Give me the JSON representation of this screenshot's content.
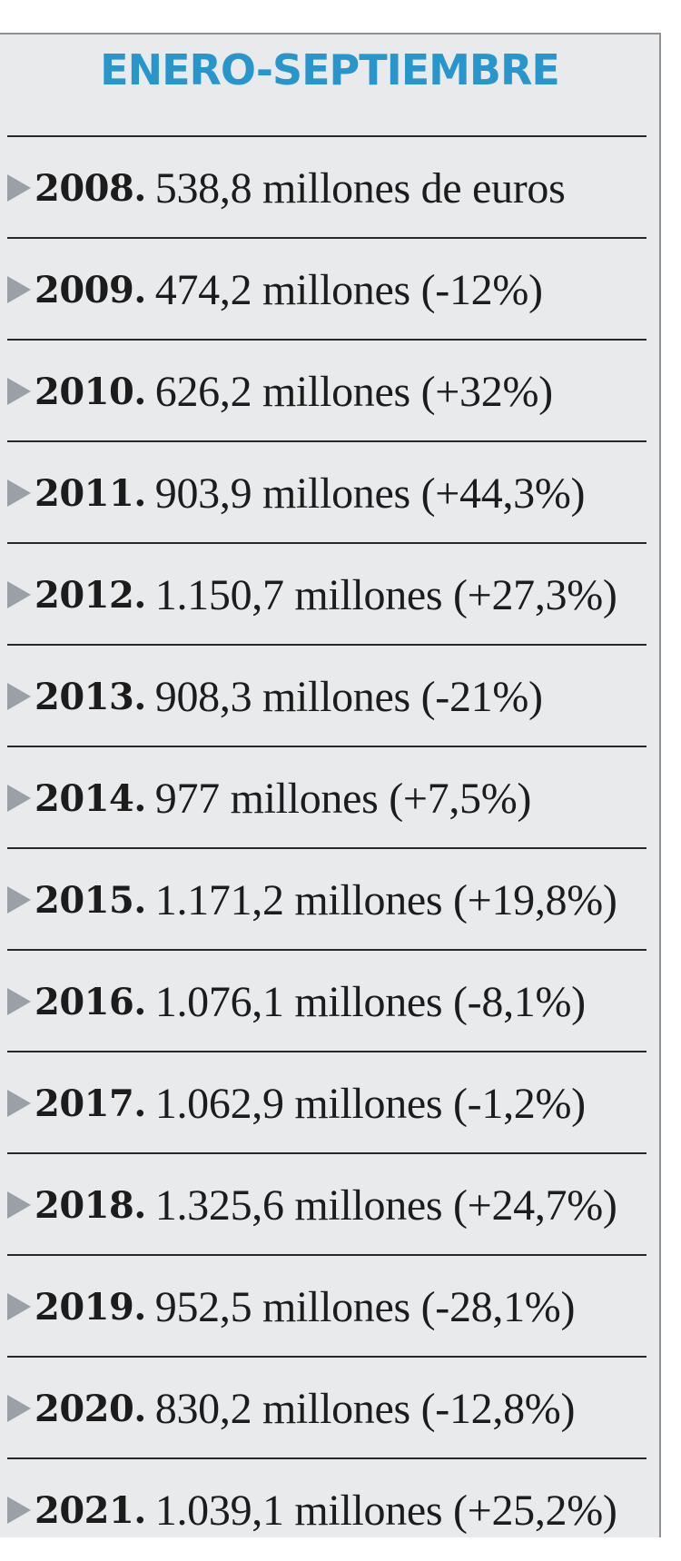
{
  "title": "ENERO-SEPTIEMBRE",
  "rows": [
    {
      "year": "2008.",
      "value": "538,8 millones de euros"
    },
    {
      "year": "2009.",
      "value": "474,2 millones (-12%)"
    },
    {
      "year": "2010.",
      "value": "626,2 millones (+32%)"
    },
    {
      "year": "2011.",
      "value": "903,9 millones (+44,3%)"
    },
    {
      "year": "2012.",
      "value": "1.150,7 millones (+27,3%)"
    },
    {
      "year": "2013.",
      "value": "908,3 millones (-21%)"
    },
    {
      "year": "2014.",
      "value": "977 millones (+7,5%)"
    },
    {
      "year": "2015.",
      "value": "1.171,2 millones (+19,8%)"
    },
    {
      "year": "2016.",
      "value": "1.076,1 millones (-8,1%)"
    },
    {
      "year": "2017.",
      "value": "1.062,9 millones (-1,2%)"
    },
    {
      "year": "2018.",
      "value": "1.325,6 millones (+24,7%)"
    },
    {
      "year": "2019.",
      "value": "952,5 millones (-28,1%)"
    },
    {
      "year": "2020.",
      "value": "830,2 millones (-12,8%)"
    },
    {
      "year": "2021.",
      "value": "1.039,1 millones (+25,2%)"
    }
  ],
  "colors": {
    "title": "#2996cb",
    "panel_background": "#e9eaec",
    "arrow": "#9aa0a7",
    "text": "#1c1c1c"
  },
  "icons": {
    "bullet": "triangle-right-icon"
  }
}
